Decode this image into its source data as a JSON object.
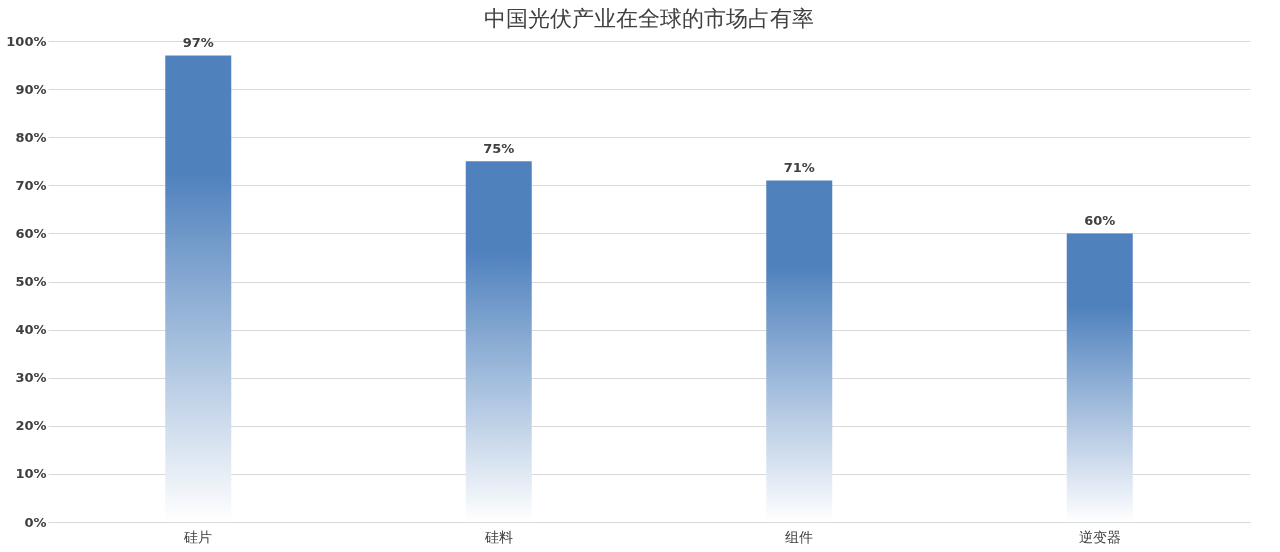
{
  "chart_data": {
    "type": "bar",
    "title": "中国光伏产业在全球的市场占有率",
    "categories": [
      "硅片",
      "硅料",
      "组件",
      "逆变器"
    ],
    "values": [
      97,
      75,
      71,
      60
    ],
    "value_labels": [
      "97%",
      "75%",
      "71%",
      "60%"
    ],
    "color": "#4f81bd",
    "ylim": [
      0,
      100
    ],
    "yticks": [
      {
        "value": 0,
        "label": "0%"
      },
      {
        "value": 10,
        "label": "10%"
      },
      {
        "value": 20,
        "label": "20%"
      },
      {
        "value": 30,
        "label": "30%"
      },
      {
        "value": 40,
        "label": "40%"
      },
      {
        "value": 50,
        "label": "50%"
      },
      {
        "value": 60,
        "label": "60%"
      },
      {
        "value": 70,
        "label": "70%"
      },
      {
        "value": 80,
        "label": "80%"
      },
      {
        "value": 90,
        "label": "90%"
      },
      {
        "value": 100,
        "label": "100%"
      }
    ],
    "grid": "y"
  }
}
